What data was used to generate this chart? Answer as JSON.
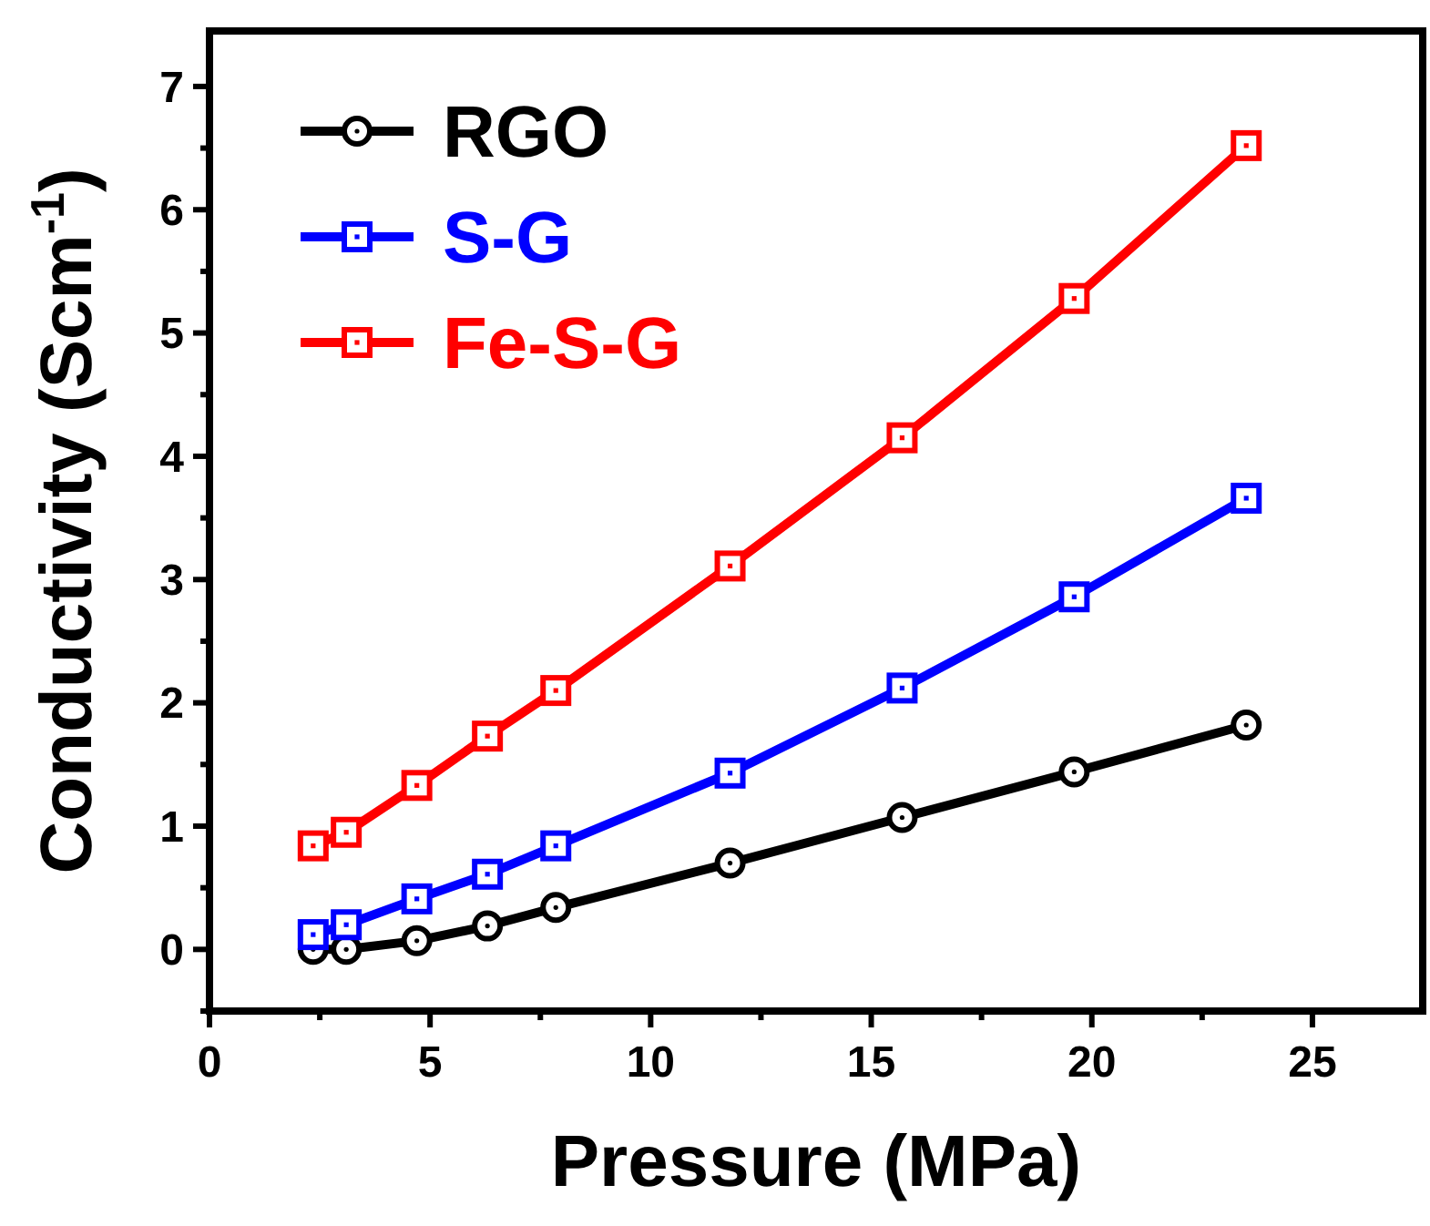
{
  "chart_data": {
    "type": "line",
    "xlabel": "Pressure (MPa)",
    "ylabel": "Conductivity (Scm$^{-1}$)",
    "xlim": [
      0,
      27.5
    ],
    "ylim": [
      -0.5,
      7.45
    ],
    "xticks": [
      0,
      {
        "value": 2.5,
        "label": null
      },
      5,
      {
        "value": 7.5,
        "label": null
      },
      10,
      {
        "value": 12.5,
        "label": null
      },
      15,
      {
        "value": 17.5,
        "label": null
      },
      20,
      {
        "value": 22.5,
        "label": null
      },
      25
    ],
    "yticks": [
      {
        "value": -0.5,
        "label": null
      },
      0,
      {
        "value": 0.5,
        "label": null
      },
      1,
      {
        "value": 1.5,
        "label": null
      },
      2,
      {
        "value": 2.5,
        "label": null
      },
      3,
      {
        "value": 3.5,
        "label": null
      },
      4,
      {
        "value": 4.5,
        "label": null
      },
      5,
      {
        "value": 5.5,
        "label": null
      },
      6,
      {
        "value": 6.5,
        "label": null
      },
      7
    ],
    "x": [
      2.35,
      3.1,
      4.7,
      6.3,
      7.85,
      11.8,
      15.7,
      19.6,
      23.5
    ],
    "legend": "top left",
    "grid": false,
    "line_style": "solid",
    "series": [
      {
        "name": "RGO",
        "color": "#000000",
        "marker": "circle",
        "values": [
          0,
          0,
          0.07,
          0.19,
          0.34,
          0.7,
          1.07,
          1.44,
          1.82
        ]
      },
      {
        "name": "S-G",
        "color": "#0000ff",
        "marker": "square",
        "values": [
          0.12,
          0.2,
          0.41,
          0.61,
          0.84,
          1.43,
          2.12,
          2.86,
          3.66
        ]
      },
      {
        "name": "Fe-S-G",
        "color": "#ff0000",
        "marker": "square",
        "values": [
          0.84,
          0.95,
          1.33,
          1.73,
          2.1,
          3.11,
          4.15,
          5.28,
          6.52
        ]
      }
    ]
  }
}
